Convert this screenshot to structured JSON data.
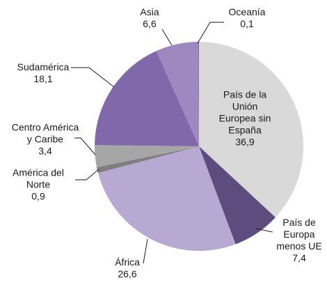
{
  "chart_data": {
    "type": "pie",
    "categories": [
      "País de la Unión Europea sin España",
      "País de Europa menos UE",
      "África",
      "América del Norte",
      "Centro América y Caribe",
      "Sudamérica",
      "Asia",
      "Oceanía"
    ],
    "values": [
      36.9,
      7.4,
      26.6,
      0.9,
      3.4,
      18.1,
      6.6,
      0.1
    ],
    "value_labels": [
      "36,9",
      "7,4",
      "26,6",
      "0,9",
      "3,4",
      "18,1",
      "6,6",
      "0,1"
    ],
    "colors": [
      "#d9d9d9",
      "#5e4c7e",
      "#b7a9d1",
      "#7f7f7f",
      "#a6a6a6",
      "#8068aa",
      "#9d89c0",
      "#6e5a8f"
    ]
  }
}
